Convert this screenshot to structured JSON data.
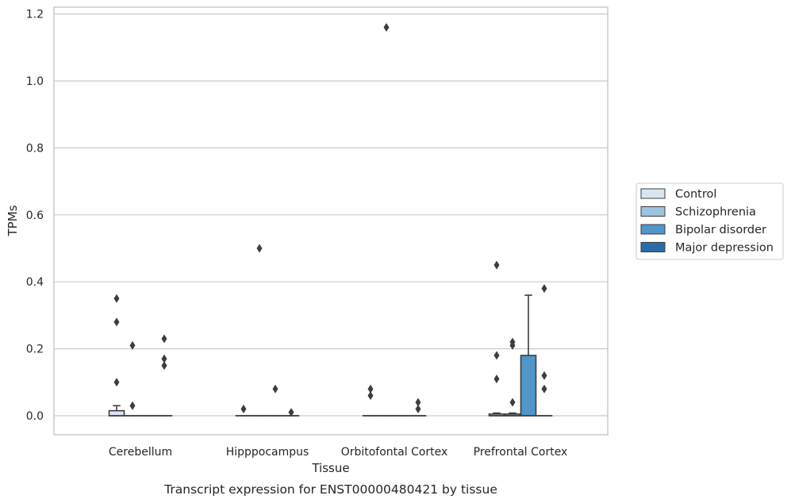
{
  "chart_data": {
    "type": "box",
    "title": "",
    "caption": "Transcript expression for ENST00000480421 by tissue",
    "xlabel": "Tissue",
    "ylabel": "TPMs",
    "ylim": [
      -0.055,
      1.22
    ],
    "yticks": [
      0.0,
      0.2,
      0.4,
      0.6,
      0.8,
      1.0,
      1.2
    ],
    "ytick_labels": [
      "0.0",
      "0.2",
      "0.4",
      "0.6",
      "0.8",
      "1.0",
      "1.2"
    ],
    "grid": "horizontal",
    "legend_position": "right",
    "categories": [
      "Cerebellum",
      "Hipppocampus",
      "Orbitofontal Cortex",
      "Prefrontal Cortex"
    ],
    "series": [
      {
        "name": "Control",
        "color": "#d8e6f4",
        "boxes": [
          {
            "q1": 0.0,
            "median": 0.0,
            "q3": 0.015,
            "whisker_low": 0.0,
            "whisker_high": 0.03,
            "outliers": [
              0.35,
              0.28,
              0.1
            ]
          },
          {
            "q1": 0.0,
            "median": 0.0,
            "q3": 0.0,
            "whisker_low": 0.0,
            "whisker_high": 0.0,
            "outliers": [
              0.02
            ]
          },
          {
            "q1": 0.0,
            "median": 0.0,
            "q3": 0.0,
            "whisker_low": 0.0,
            "whisker_high": 0.0,
            "outliers": [
              0.08,
              0.06
            ]
          },
          {
            "q1": 0.0,
            "median": 0.0,
            "q3": 0.005,
            "whisker_low": 0.0,
            "whisker_high": 0.008,
            "outliers": [
              0.45,
              0.18,
              0.11
            ]
          }
        ]
      },
      {
        "name": "Schizophrenia",
        "color": "#9cc3e0",
        "boxes": [
          {
            "q1": 0.0,
            "median": 0.0,
            "q3": 0.0,
            "whisker_low": 0.0,
            "whisker_high": 0.0,
            "outliers": [
              0.21,
              0.03
            ]
          },
          {
            "q1": 0.0,
            "median": 0.0,
            "q3": 0.0,
            "whisker_low": 0.0,
            "whisker_high": 0.0,
            "outliers": [
              0.5
            ]
          },
          {
            "q1": 0.0,
            "median": 0.0,
            "q3": 0.0,
            "whisker_low": 0.0,
            "whisker_high": 0.0,
            "outliers": [
              1.16
            ]
          },
          {
            "q1": 0.0,
            "median": 0.0,
            "q3": 0.005,
            "whisker_low": 0.0,
            "whisker_high": 0.008,
            "outliers": [
              0.22,
              0.21,
              0.04
            ]
          }
        ]
      },
      {
        "name": "Bipolar disorder",
        "color": "#5096c9",
        "boxes": [
          {
            "q1": 0.0,
            "median": 0.0,
            "q3": 0.0,
            "whisker_low": 0.0,
            "whisker_high": 0.0,
            "outliers": []
          },
          {
            "q1": 0.0,
            "median": 0.0,
            "q3": 0.0,
            "whisker_low": 0.0,
            "whisker_high": 0.0,
            "outliers": [
              0.08
            ]
          },
          {
            "q1": 0.0,
            "median": 0.0,
            "q3": 0.0,
            "whisker_low": 0.0,
            "whisker_high": 0.0,
            "outliers": []
          },
          {
            "q1": 0.0,
            "median": 0.0,
            "q3": 0.18,
            "whisker_low": 0.0,
            "whisker_high": 0.36,
            "outliers": []
          }
        ]
      },
      {
        "name": "Major depression",
        "color": "#2b6ca8",
        "boxes": [
          {
            "q1": 0.0,
            "median": 0.0,
            "q3": 0.0,
            "whisker_low": 0.0,
            "whisker_high": 0.0,
            "outliers": [
              0.23,
              0.17,
              0.15
            ]
          },
          {
            "q1": 0.0,
            "median": 0.0,
            "q3": 0.0,
            "whisker_low": 0.0,
            "whisker_high": 0.0,
            "outliers": [
              0.01
            ]
          },
          {
            "q1": 0.0,
            "median": 0.0,
            "q3": 0.0,
            "whisker_low": 0.0,
            "whisker_high": 0.0,
            "outliers": [
              0.04,
              0.02
            ]
          },
          {
            "q1": 0.0,
            "median": 0.0,
            "q3": 0.0,
            "whisker_low": 0.0,
            "whisker_high": 0.0,
            "outliers": [
              0.38,
              0.12,
              0.08
            ]
          }
        ]
      }
    ]
  }
}
